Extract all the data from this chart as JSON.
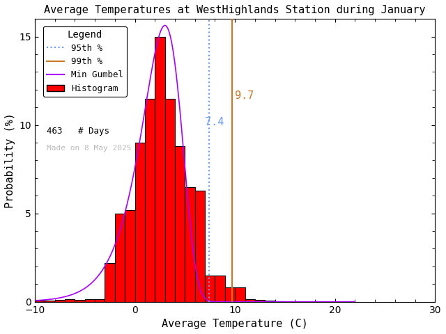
{
  "title": "Average Temperatures at WestHighlands Station during January",
  "xlabel": "Average Temperature (C)",
  "ylabel": "Probability (%)",
  "xlim": [
    -10,
    30
  ],
  "ylim": [
    0,
    16
  ],
  "yticks": [
    0,
    5,
    10,
    15
  ],
  "xticks": [
    -10,
    0,
    10,
    20,
    30
  ],
  "bar_edges": [
    -10,
    -9,
    -8,
    -7,
    -6,
    -5,
    -4,
    -3,
    -2,
    -1,
    0,
    1,
    2,
    3,
    4,
    5,
    6,
    7,
    8,
    9,
    10,
    11,
    12,
    13,
    14,
    15
  ],
  "bar_heights": [
    0.05,
    0.05,
    0.1,
    0.15,
    0.1,
    0.15,
    0.15,
    2.2,
    5.0,
    5.2,
    9.0,
    11.5,
    15.0,
    11.5,
    8.8,
    6.5,
    6.3,
    1.5,
    1.5,
    0.8,
    0.8,
    0.15,
    0.1,
    0.05,
    0.02
  ],
  "bar_color": "#ff0000",
  "bar_edge_color": "#000000",
  "p95": 7.4,
  "p99": 9.7,
  "p95_color": "#6699ff",
  "p95_linestyle": "dotted",
  "p99_color": "#cc7722",
  "p99_linestyle": "solid",
  "gumbel_color": "#aa00ff",
  "gumbel_mu": 3.0,
  "gumbel_beta": 2.0,
  "gumbel_scale": 85.0,
  "n_days": 463,
  "watermark": "Made on 8 May 2025",
  "watermark_color": "#bbbbbb",
  "background_color": "#ffffff"
}
